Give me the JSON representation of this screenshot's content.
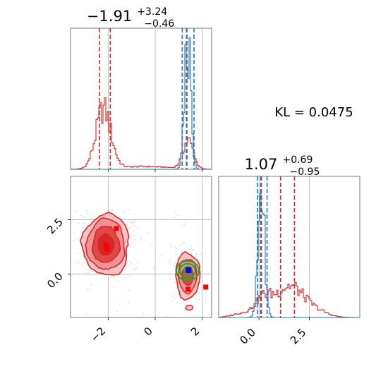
{
  "chart_data": {
    "type": "corner",
    "kl_text": "KL = 0.0475",
    "colors": {
      "red": "#d62728",
      "blue": "#1f77b4",
      "green": "#2ca02c",
      "marker_blue": "#0000ff",
      "marker_red": "#ff0000",
      "grid": "#b0b0b0"
    },
    "param1": {
      "title": {
        "main": "−1.91",
        "sup": "+3.24",
        "sub": "−0.46"
      },
      "range": [
        -3.6,
        2.4
      ],
      "ticks": [
        -2,
        0,
        2
      ],
      "tick_labels": [
        "−2",
        "0",
        "2"
      ],
      "red_quantiles": [
        -2.37,
        -1.91,
        1.33
      ],
      "blue_quantiles": [
        1.15,
        1.35,
        1.65
      ]
    },
    "param2": {
      "title": {
        "main": "1.07",
        "sup": "+0.69",
        "sub": "−0.95"
      },
      "range": [
        -2.0,
        5.0
      ],
      "ticks": [
        0,
        2.5
      ],
      "tick_labels": [
        "0.0",
        "2.5"
      ],
      "red_quantiles": [
        0.12,
        1.07,
        1.76
      ],
      "blue_quantiles": [
        -0.08,
        0.08,
        0.4
      ]
    },
    "scatter_y_range": [
      -2.0,
      4.5
    ],
    "scatter_y_ticks": [
      0,
      2.5
    ],
    "scatter_y_tick_labels": [
      "0.0",
      "2.5"
    ],
    "red_markers": [
      {
        "x": -2.1,
        "y": 1.35
      },
      {
        "x": -2.05,
        "y": 1.15
      },
      {
        "x": -1.65,
        "y": 2.1
      },
      {
        "x": 1.4,
        "y": -0.7
      },
      {
        "x": 2.15,
        "y": -0.6
      }
    ],
    "blue_marker": {
      "x": 1.42,
      "y": 0.18
    }
  }
}
